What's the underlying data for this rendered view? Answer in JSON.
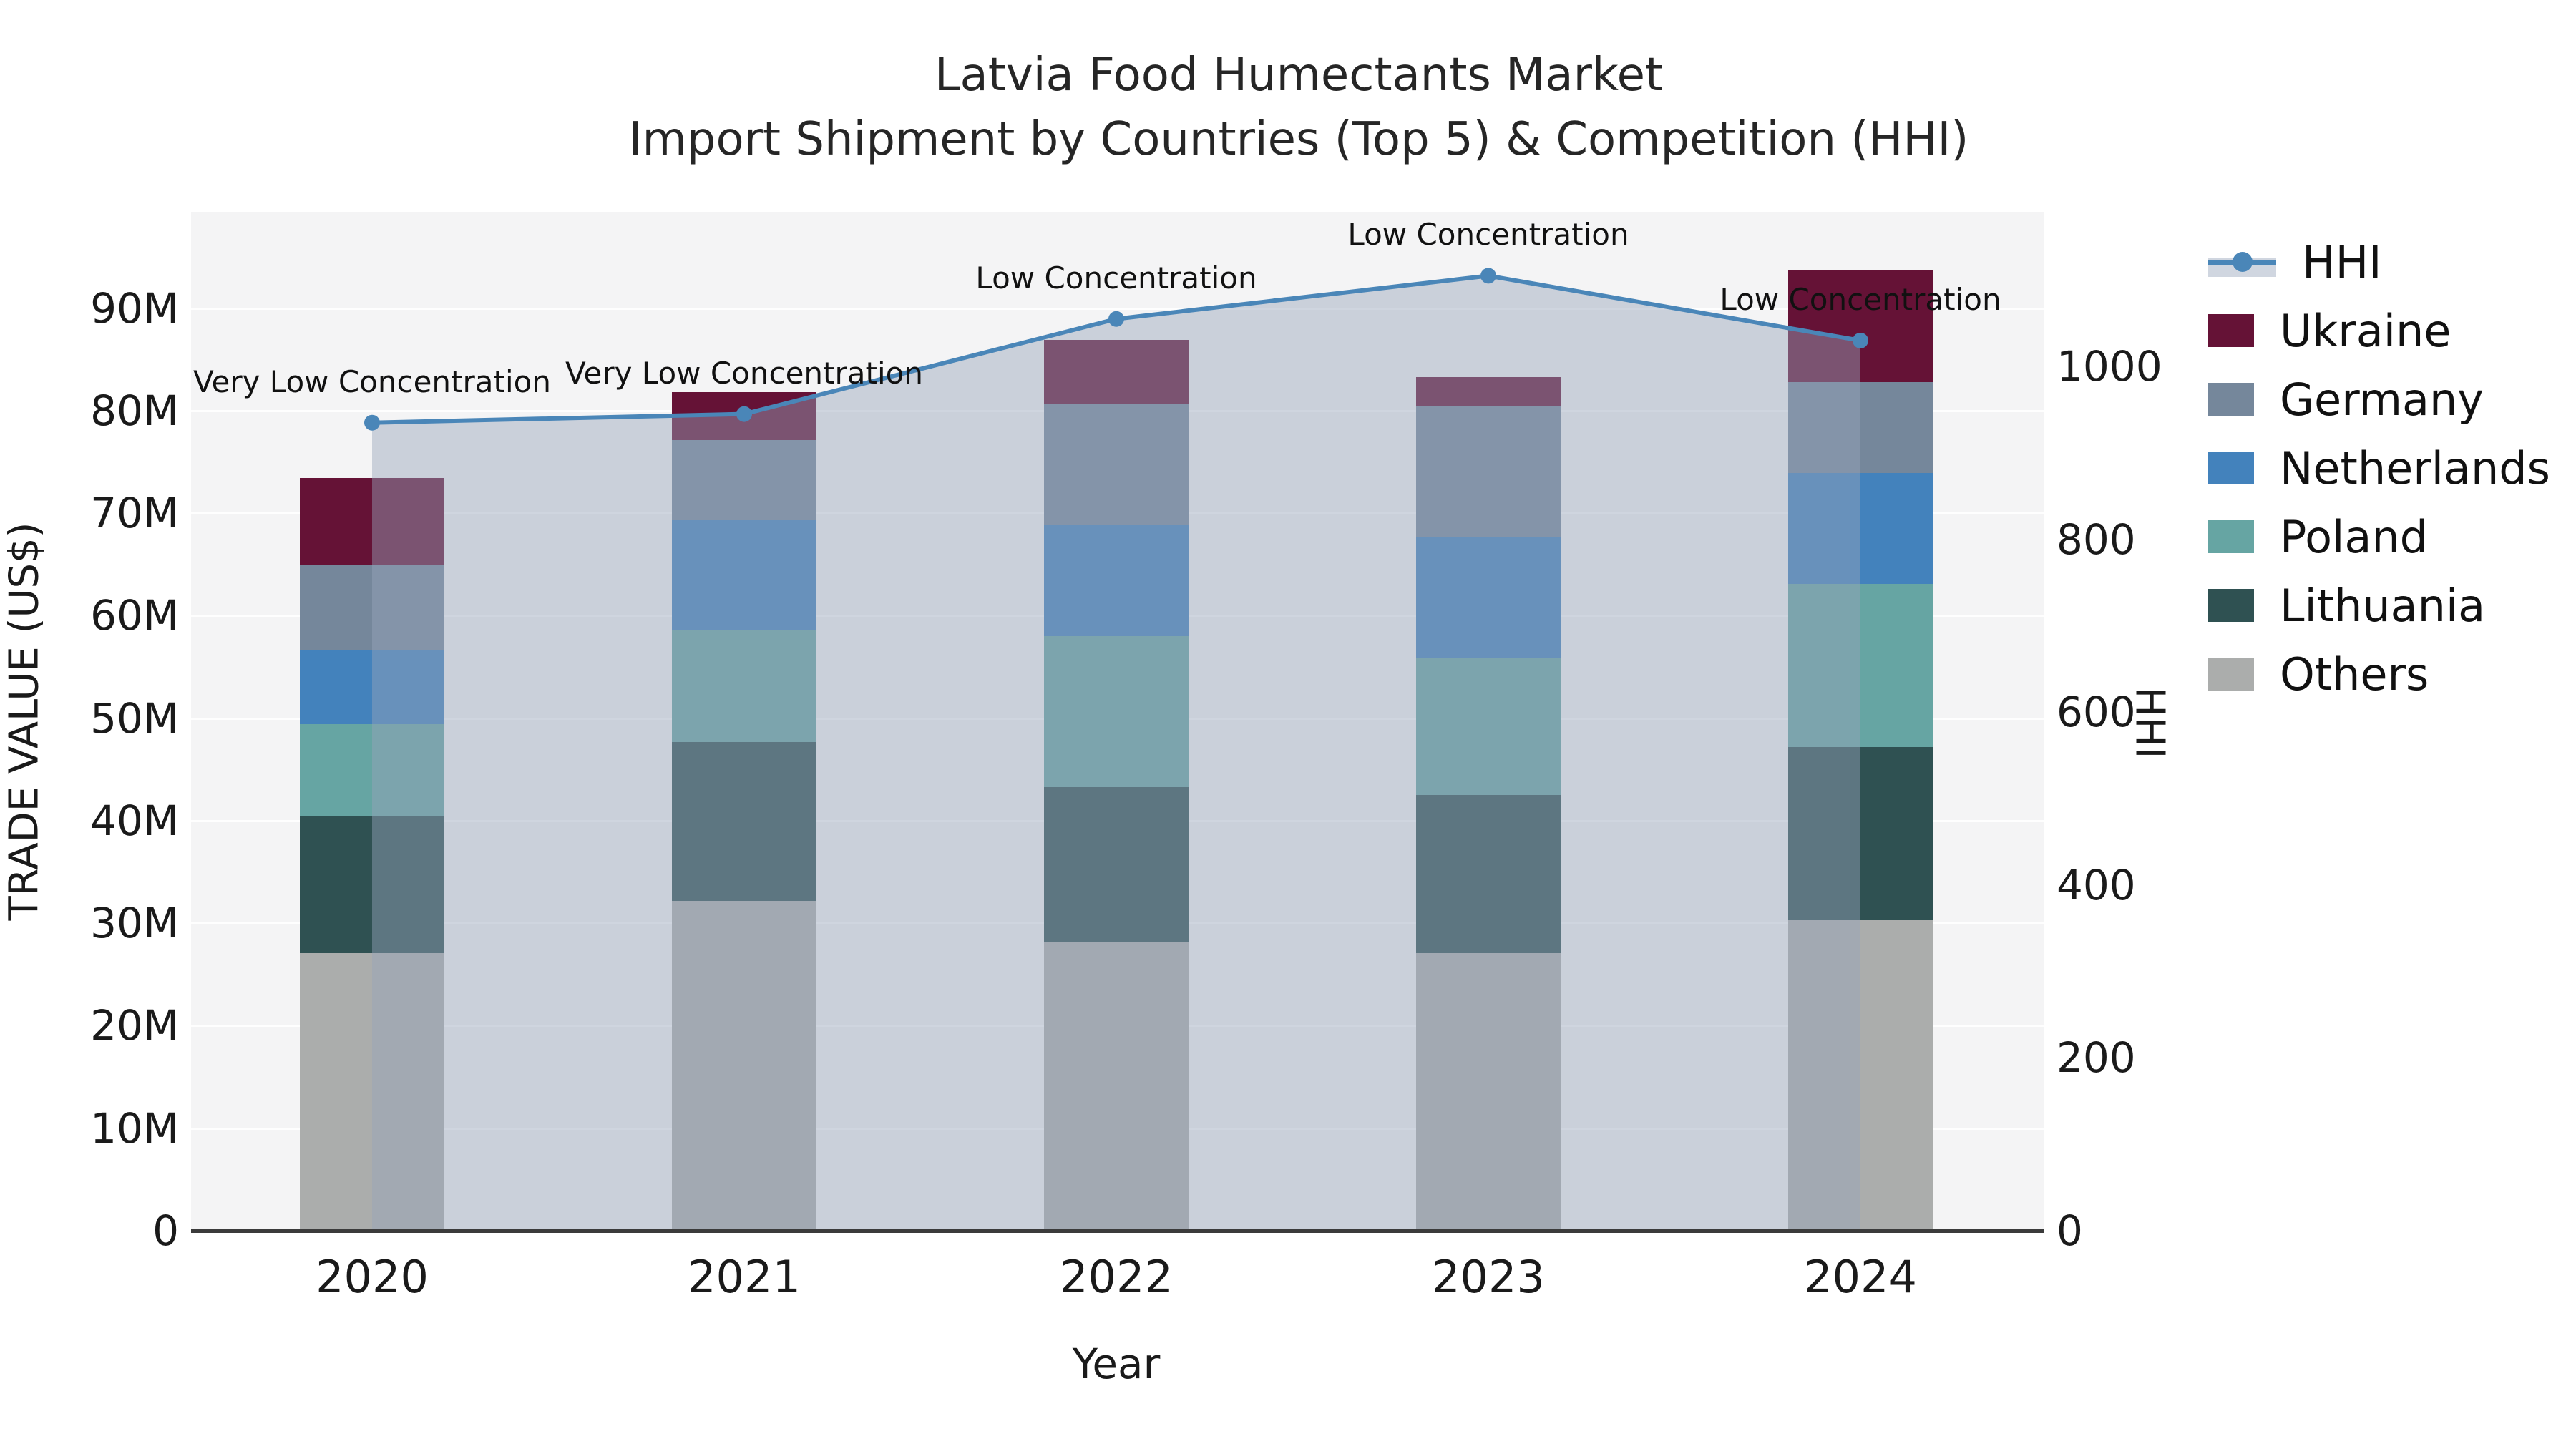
{
  "title": {
    "line1": "Latvia Food Humectants Market",
    "line2": "Import Shipment by Countries (Top 5) & Competition (HHI)"
  },
  "axes": {
    "x_label": "Year",
    "y_left_label": "TRADE VALUE (US$)",
    "y_right_label": "HHI",
    "y_left_ticks": [
      {
        "value": 0,
        "label": "0"
      },
      {
        "value": 10,
        "label": "10M"
      },
      {
        "value": 20,
        "label": "20M"
      },
      {
        "value": 30,
        "label": "30M"
      },
      {
        "value": 40,
        "label": "40M"
      },
      {
        "value": 50,
        "label": "50M"
      },
      {
        "value": 60,
        "label": "60M"
      },
      {
        "value": 70,
        "label": "70M"
      },
      {
        "value": 80,
        "label": "80M"
      },
      {
        "value": 90,
        "label": "90M"
      }
    ],
    "y_right_ticks": [
      {
        "value": 0,
        "label": "0"
      },
      {
        "value": 200,
        "label": "200"
      },
      {
        "value": 400,
        "label": "400"
      },
      {
        "value": 600,
        "label": "600"
      },
      {
        "value": 800,
        "label": "800"
      },
      {
        "value": 1000,
        "label": "1000"
      }
    ]
  },
  "legend": {
    "items": [
      {
        "label": "HHI",
        "type": "line",
        "color": "#4A86B8"
      },
      {
        "label": "Ukraine",
        "type": "swatch",
        "color": "#651236"
      },
      {
        "label": "Germany",
        "type": "swatch",
        "color": "#75879B"
      },
      {
        "label": "Netherlands",
        "type": "swatch",
        "color": "#4382BC"
      },
      {
        "label": "Poland",
        "type": "swatch",
        "color": "#66A5A3"
      },
      {
        "label": "Lithuania",
        "type": "swatch",
        "color": "#2F5152"
      },
      {
        "label": "Others",
        "type": "swatch",
        "color": "#ABADAC"
      }
    ]
  },
  "colors": {
    "plot_background": "#f4f4f5",
    "gridline": "rgba(255,255,255,0.9)",
    "axis_line": "#3b3b3b",
    "hhi_line": "#4A86B8",
    "hhi_area_fill": "rgba(151,165,186,0.45)",
    "text": "#1a1a1a"
  },
  "chart_data": {
    "type": "stacked-bar+line",
    "title": "Latvia Food Humectants Market — Import Shipment by Countries (Top 5) & Competition (HHI)",
    "categories": [
      "2020",
      "2021",
      "2022",
      "2023",
      "2024"
    ],
    "value_unit": "M US$ (trade value, left axis)",
    "series": [
      {
        "name": "Ukraine",
        "color": "#651236",
        "values": [
          8.4,
          4.7,
          6.3,
          2.8,
          10.9
        ]
      },
      {
        "name": "Germany",
        "color": "#75879B",
        "values": [
          8.3,
          7.8,
          11.7,
          12.8,
          8.9
        ]
      },
      {
        "name": "Netherlands",
        "color": "#4382BC",
        "values": [
          7.3,
          10.7,
          10.9,
          11.8,
          10.8
        ]
      },
      {
        "name": "Poland",
        "color": "#66A5A3",
        "values": [
          9.0,
          10.9,
          14.7,
          13.4,
          15.9
        ]
      },
      {
        "name": "Lithuania",
        "color": "#2F5152",
        "values": [
          13.3,
          15.5,
          15.2,
          15.4,
          16.9
        ]
      },
      {
        "name": "Others",
        "color": "#ABADAC",
        "values": [
          27.1,
          32.2,
          28.1,
          27.1,
          30.3
        ]
      }
    ],
    "bar_totals": [
      73.4,
      81.8,
      86.9,
      83.3,
      93.7
    ],
    "line": {
      "name": "HHI",
      "color": "#4A86B8",
      "area_fill": "rgba(151,165,186,0.45)",
      "values": [
        935,
        945,
        1055,
        1105,
        1030
      ]
    },
    "annotations": [
      "Very Low Concentration",
      "Very Low Concentration",
      "Low Concentration",
      "Low Concentration",
      "Low Concentration"
    ],
    "xlabel": "Year",
    "ylabel_left": "TRADE VALUE (US$)",
    "ylabel_right": "HHI",
    "ylim_left": [
      0,
      99.4
    ],
    "ylim_right": [
      0,
      1179
    ],
    "grid": "horizontal",
    "legend_position": "right"
  }
}
